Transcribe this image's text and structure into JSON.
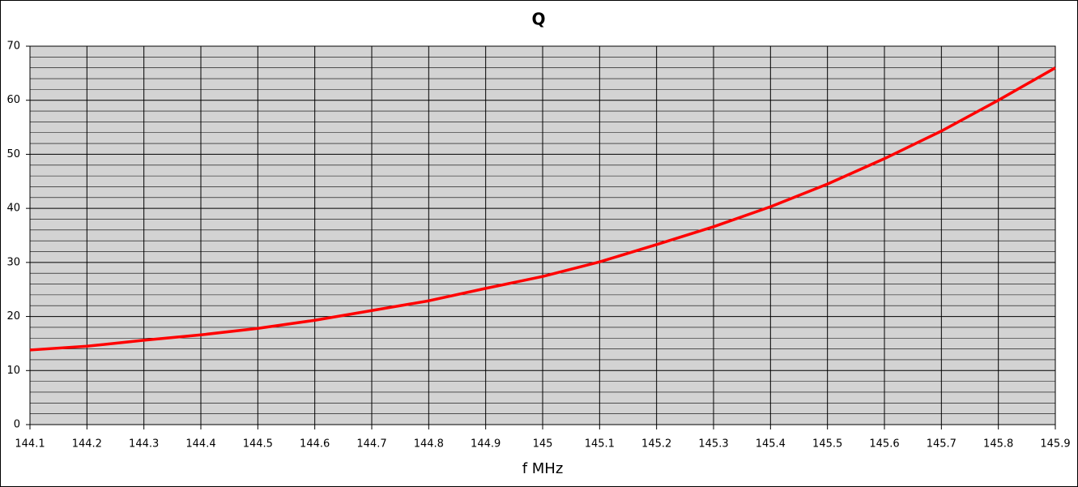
{
  "chart_data": {
    "type": "line",
    "title": "Q",
    "x_label": "f MHz",
    "x": [
      144.1,
      144.2,
      144.3,
      144.4,
      144.5,
      144.6,
      144.7,
      144.8,
      144.9,
      145,
      145.1,
      145.2,
      145.3,
      145.4,
      145.5,
      145.6,
      145.7,
      145.8,
      145.9
    ],
    "series": [
      {
        "name": "Q",
        "color": "#ff0000",
        "values": [
          13.8,
          14.5,
          15.6,
          16.6,
          17.8,
          19.3,
          21.1,
          22.9,
          25.2,
          27.4,
          30.1,
          33.3,
          36.6,
          40.3,
          44.5,
          49.2,
          54.3,
          60.0,
          66.0
        ]
      }
    ],
    "xlim": [
      144.1,
      145.9
    ],
    "xticks": [
      144.1,
      144.2,
      144.3,
      144.4,
      144.5,
      144.6,
      144.7,
      144.8,
      144.9,
      145,
      145.1,
      145.2,
      145.3,
      145.4,
      145.5,
      145.6,
      145.7,
      145.8,
      145.9
    ],
    "ylim": [
      0,
      70
    ],
    "yticks": [
      0,
      10,
      20,
      30,
      40,
      50,
      60,
      70
    ],
    "grid": true,
    "minor_grid": true,
    "background": "#d3d3d3"
  }
}
